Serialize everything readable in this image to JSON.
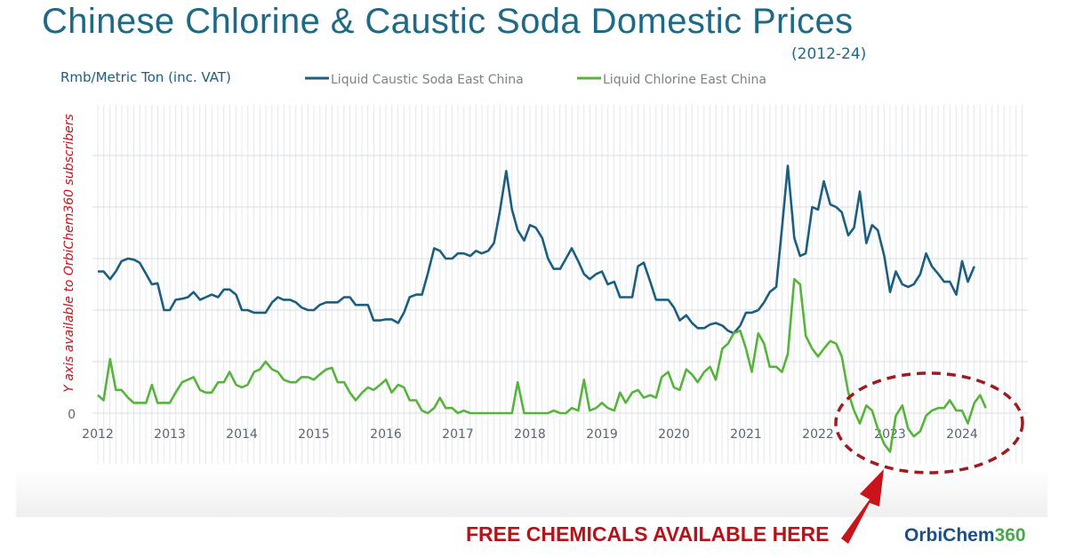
{
  "title": "Chinese Chlorine & Caustic Soda Domestic Prices",
  "subtitle": "(2012-24)",
  "y_unit": "Rmb/Metric Ton (inc. VAT)",
  "y_note": "Y axis available to OrbiChem360 subscribers",
  "callout": "FREE CHEMICALS AVAILABLE HERE",
  "brand": {
    "word": "OrbiChem",
    "number": "360"
  },
  "colors": {
    "caustic": "#1b5e80",
    "chlorine": "#56b43a",
    "callout": "#b3141a",
    "grid": "#e4e8ec"
  },
  "chart_data": {
    "type": "line",
    "x_unit": "year (decimal)",
    "y_values": "relative (y axis hidden, only 0 shown)",
    "xlim": [
      2012,
      2024.7
    ],
    "ylim": [
      -1.1,
      6
    ],
    "x_ticks": [
      "2012",
      "2013",
      "2014",
      "2015",
      "2016",
      "2017",
      "2018",
      "2019",
      "2020",
      "2021",
      "2022",
      "2023",
      "2024"
    ],
    "y_ticks": [
      "0"
    ],
    "grid": true,
    "legend": "top",
    "series": [
      {
        "name": "Liquid Caustic Soda East China",
        "color": "#1b5e80",
        "points": [
          [
            2012.0,
            2.75
          ],
          [
            2012.08,
            2.75
          ],
          [
            2012.17,
            2.6
          ],
          [
            2012.25,
            2.75
          ],
          [
            2012.33,
            2.95
          ],
          [
            2012.42,
            3.0
          ],
          [
            2012.5,
            2.98
          ],
          [
            2012.58,
            2.92
          ],
          [
            2012.67,
            2.7
          ],
          [
            2012.75,
            2.5
          ],
          [
            2012.83,
            2.52
          ],
          [
            2012.92,
            2.0
          ],
          [
            2013.0,
            2.0
          ],
          [
            2013.08,
            2.2
          ],
          [
            2013.17,
            2.22
          ],
          [
            2013.25,
            2.25
          ],
          [
            2013.33,
            2.35
          ],
          [
            2013.42,
            2.2
          ],
          [
            2013.5,
            2.25
          ],
          [
            2013.58,
            2.3
          ],
          [
            2013.67,
            2.25
          ],
          [
            2013.75,
            2.4
          ],
          [
            2013.83,
            2.4
          ],
          [
            2013.92,
            2.3
          ],
          [
            2014.0,
            2.0
          ],
          [
            2014.08,
            2.0
          ],
          [
            2014.17,
            1.95
          ],
          [
            2014.25,
            1.95
          ],
          [
            2014.33,
            1.95
          ],
          [
            2014.42,
            2.15
          ],
          [
            2014.5,
            2.25
          ],
          [
            2014.58,
            2.2
          ],
          [
            2014.67,
            2.2
          ],
          [
            2014.75,
            2.15
          ],
          [
            2014.83,
            2.05
          ],
          [
            2014.92,
            2.0
          ],
          [
            2015.0,
            2.0
          ],
          [
            2015.08,
            2.1
          ],
          [
            2015.17,
            2.15
          ],
          [
            2015.25,
            2.15
          ],
          [
            2015.33,
            2.15
          ],
          [
            2015.42,
            2.25
          ],
          [
            2015.5,
            2.25
          ],
          [
            2015.58,
            2.1
          ],
          [
            2015.67,
            2.1
          ],
          [
            2015.75,
            2.1
          ],
          [
            2015.83,
            1.8
          ],
          [
            2015.92,
            1.8
          ],
          [
            2016.0,
            1.82
          ],
          [
            2016.08,
            1.82
          ],
          [
            2016.17,
            1.75
          ],
          [
            2016.25,
            1.95
          ],
          [
            2016.33,
            2.25
          ],
          [
            2016.42,
            2.3
          ],
          [
            2016.5,
            2.3
          ],
          [
            2016.58,
            2.7
          ],
          [
            2016.67,
            3.2
          ],
          [
            2016.75,
            3.15
          ],
          [
            2016.83,
            3.0
          ],
          [
            2016.92,
            3.0
          ],
          [
            2017.0,
            3.1
          ],
          [
            2017.08,
            3.1
          ],
          [
            2017.17,
            3.05
          ],
          [
            2017.25,
            3.15
          ],
          [
            2017.33,
            3.1
          ],
          [
            2017.42,
            3.15
          ],
          [
            2017.5,
            3.3
          ],
          [
            2017.58,
            3.9
          ],
          [
            2017.67,
            4.7
          ],
          [
            2017.75,
            3.95
          ],
          [
            2017.83,
            3.55
          ],
          [
            2017.92,
            3.35
          ],
          [
            2018.0,
            3.65
          ],
          [
            2018.08,
            3.6
          ],
          [
            2018.17,
            3.4
          ],
          [
            2018.25,
            3.0
          ],
          [
            2018.33,
            2.8
          ],
          [
            2018.42,
            2.8
          ],
          [
            2018.5,
            3.0
          ],
          [
            2018.58,
            3.2
          ],
          [
            2018.67,
            2.95
          ],
          [
            2018.75,
            2.7
          ],
          [
            2018.83,
            2.6
          ],
          [
            2018.92,
            2.7
          ],
          [
            2019.0,
            2.75
          ],
          [
            2019.08,
            2.5
          ],
          [
            2019.17,
            2.55
          ],
          [
            2019.25,
            2.25
          ],
          [
            2019.33,
            2.25
          ],
          [
            2019.42,
            2.25
          ],
          [
            2019.5,
            2.85
          ],
          [
            2019.58,
            2.92
          ],
          [
            2019.67,
            2.55
          ],
          [
            2019.75,
            2.2
          ],
          [
            2019.83,
            2.2
          ],
          [
            2019.92,
            2.2
          ],
          [
            2020.0,
            2.05
          ],
          [
            2020.08,
            1.8
          ],
          [
            2020.17,
            1.9
          ],
          [
            2020.25,
            1.75
          ],
          [
            2020.33,
            1.65
          ],
          [
            2020.42,
            1.65
          ],
          [
            2020.5,
            1.72
          ],
          [
            2020.58,
            1.75
          ],
          [
            2020.67,
            1.7
          ],
          [
            2020.75,
            1.6
          ],
          [
            2020.83,
            1.55
          ],
          [
            2020.92,
            1.7
          ],
          [
            2021.0,
            1.95
          ],
          [
            2021.08,
            1.95
          ],
          [
            2021.17,
            2.0
          ],
          [
            2021.25,
            2.15
          ],
          [
            2021.33,
            2.35
          ],
          [
            2021.42,
            2.45
          ],
          [
            2021.5,
            3.6
          ],
          [
            2021.58,
            4.8
          ],
          [
            2021.67,
            3.4
          ],
          [
            2021.75,
            3.05
          ],
          [
            2021.83,
            3.1
          ],
          [
            2021.92,
            4.0
          ],
          [
            2022.0,
            3.95
          ],
          [
            2022.08,
            4.5
          ],
          [
            2022.17,
            4.05
          ],
          [
            2022.25,
            4.0
          ],
          [
            2022.33,
            3.9
          ],
          [
            2022.42,
            3.45
          ],
          [
            2022.5,
            3.6
          ],
          [
            2022.58,
            4.3
          ],
          [
            2022.67,
            3.3
          ],
          [
            2022.75,
            3.65
          ],
          [
            2022.83,
            3.55
          ],
          [
            2022.92,
            3.05
          ],
          [
            2023.0,
            2.35
          ],
          [
            2023.08,
            2.75
          ],
          [
            2023.17,
            2.5
          ],
          [
            2023.25,
            2.45
          ],
          [
            2023.33,
            2.5
          ],
          [
            2023.42,
            2.7
          ],
          [
            2023.5,
            3.1
          ],
          [
            2023.58,
            2.85
          ],
          [
            2023.67,
            2.7
          ],
          [
            2023.75,
            2.55
          ],
          [
            2023.83,
            2.55
          ],
          [
            2023.92,
            2.3
          ],
          [
            2024.0,
            2.95
          ],
          [
            2024.08,
            2.55
          ],
          [
            2024.17,
            2.85
          ]
        ]
      },
      {
        "name": "Liquid Chlorine East China",
        "color": "#56b43a",
        "points": [
          [
            2012.0,
            0.35
          ],
          [
            2012.08,
            0.25
          ],
          [
            2012.17,
            1.05
          ],
          [
            2012.25,
            0.45
          ],
          [
            2012.33,
            0.45
          ],
          [
            2012.42,
            0.3
          ],
          [
            2012.5,
            0.2
          ],
          [
            2012.58,
            0.2
          ],
          [
            2012.67,
            0.2
          ],
          [
            2012.75,
            0.55
          ],
          [
            2012.83,
            0.2
          ],
          [
            2012.92,
            0.2
          ],
          [
            2013.0,
            0.2
          ],
          [
            2013.08,
            0.4
          ],
          [
            2013.17,
            0.6
          ],
          [
            2013.25,
            0.65
          ],
          [
            2013.33,
            0.7
          ],
          [
            2013.42,
            0.45
          ],
          [
            2013.5,
            0.4
          ],
          [
            2013.58,
            0.4
          ],
          [
            2013.67,
            0.6
          ],
          [
            2013.75,
            0.6
          ],
          [
            2013.83,
            0.8
          ],
          [
            2013.92,
            0.55
          ],
          [
            2014.0,
            0.5
          ],
          [
            2014.08,
            0.55
          ],
          [
            2014.17,
            0.8
          ],
          [
            2014.25,
            0.85
          ],
          [
            2014.33,
            1.0
          ],
          [
            2014.42,
            0.85
          ],
          [
            2014.5,
            0.8
          ],
          [
            2014.58,
            0.65
          ],
          [
            2014.67,
            0.6
          ],
          [
            2014.75,
            0.6
          ],
          [
            2014.83,
            0.7
          ],
          [
            2014.92,
            0.7
          ],
          [
            2015.0,
            0.65
          ],
          [
            2015.08,
            0.75
          ],
          [
            2015.17,
            0.85
          ],
          [
            2015.25,
            0.88
          ],
          [
            2015.33,
            0.6
          ],
          [
            2015.42,
            0.6
          ],
          [
            2015.5,
            0.4
          ],
          [
            2015.58,
            0.25
          ],
          [
            2015.67,
            0.4
          ],
          [
            2015.75,
            0.5
          ],
          [
            2015.83,
            0.45
          ],
          [
            2015.92,
            0.55
          ],
          [
            2016.0,
            0.65
          ],
          [
            2016.08,
            0.4
          ],
          [
            2016.17,
            0.55
          ],
          [
            2016.25,
            0.5
          ],
          [
            2016.33,
            0.25
          ],
          [
            2016.42,
            0.25
          ],
          [
            2016.5,
            0.05
          ],
          [
            2016.58,
            0.0
          ],
          [
            2016.67,
            0.1
          ],
          [
            2016.75,
            0.3
          ],
          [
            2016.83,
            0.1
          ],
          [
            2016.92,
            0.1
          ],
          [
            2017.0,
            0.0
          ],
          [
            2017.08,
            0.05
          ],
          [
            2017.17,
            0.0
          ],
          [
            2017.25,
            0.0
          ],
          [
            2017.33,
            0.0
          ],
          [
            2017.42,
            0.0
          ],
          [
            2017.5,
            0.0
          ],
          [
            2017.58,
            0.0
          ],
          [
            2017.67,
            0.0
          ],
          [
            2017.75,
            0.0
          ],
          [
            2017.83,
            0.6
          ],
          [
            2017.92,
            0.0
          ],
          [
            2018.0,
            0.0
          ],
          [
            2018.08,
            0.0
          ],
          [
            2018.17,
            0.0
          ],
          [
            2018.25,
            0.0
          ],
          [
            2018.33,
            0.05
          ],
          [
            2018.42,
            0.0
          ],
          [
            2018.5,
            0.0
          ],
          [
            2018.58,
            0.1
          ],
          [
            2018.67,
            0.05
          ],
          [
            2018.75,
            0.65
          ],
          [
            2018.83,
            0.05
          ],
          [
            2018.92,
            0.1
          ],
          [
            2019.0,
            0.2
          ],
          [
            2019.08,
            0.1
          ],
          [
            2019.17,
            0.05
          ],
          [
            2019.25,
            0.4
          ],
          [
            2019.33,
            0.2
          ],
          [
            2019.42,
            0.4
          ],
          [
            2019.5,
            0.45
          ],
          [
            2019.58,
            0.3
          ],
          [
            2019.67,
            0.35
          ],
          [
            2019.75,
            0.3
          ],
          [
            2019.83,
            0.7
          ],
          [
            2019.92,
            0.8
          ],
          [
            2020.0,
            0.5
          ],
          [
            2020.08,
            0.45
          ],
          [
            2020.17,
            0.85
          ],
          [
            2020.25,
            0.75
          ],
          [
            2020.33,
            0.6
          ],
          [
            2020.42,
            0.8
          ],
          [
            2020.5,
            0.9
          ],
          [
            2020.58,
            0.65
          ],
          [
            2020.67,
            1.25
          ],
          [
            2020.75,
            1.35
          ],
          [
            2020.83,
            1.55
          ],
          [
            2020.92,
            1.6
          ],
          [
            2021.0,
            1.25
          ],
          [
            2021.08,
            0.8
          ],
          [
            2021.17,
            1.55
          ],
          [
            2021.25,
            1.35
          ],
          [
            2021.33,
            0.9
          ],
          [
            2021.42,
            0.9
          ],
          [
            2021.5,
            0.8
          ],
          [
            2021.58,
            1.15
          ],
          [
            2021.67,
            2.6
          ],
          [
            2021.75,
            2.5
          ],
          [
            2021.83,
            1.5
          ],
          [
            2021.92,
            1.25
          ],
          [
            2022.0,
            1.1
          ],
          [
            2022.08,
            1.25
          ],
          [
            2022.17,
            1.4
          ],
          [
            2022.25,
            1.35
          ],
          [
            2022.33,
            1.1
          ],
          [
            2022.42,
            0.4
          ],
          [
            2022.5,
            0.05
          ],
          [
            2022.58,
            -0.2
          ],
          [
            2022.67,
            0.15
          ],
          [
            2022.75,
            0.05
          ],
          [
            2022.83,
            -0.3
          ],
          [
            2022.92,
            -0.6
          ],
          [
            2023.0,
            -0.75
          ],
          [
            2023.08,
            -0.05
          ],
          [
            2023.17,
            0.15
          ],
          [
            2023.25,
            -0.3
          ],
          [
            2023.33,
            -0.45
          ],
          [
            2023.42,
            -0.35
          ],
          [
            2023.5,
            -0.05
          ],
          [
            2023.58,
            0.05
          ],
          [
            2023.67,
            0.1
          ],
          [
            2023.75,
            0.1
          ],
          [
            2023.83,
            0.25
          ],
          [
            2023.92,
            0.05
          ],
          [
            2024.0,
            0.05
          ],
          [
            2024.08,
            -0.2
          ],
          [
            2024.17,
            0.2
          ],
          [
            2024.25,
            0.35
          ],
          [
            2024.33,
            0.1
          ]
        ]
      }
    ]
  }
}
